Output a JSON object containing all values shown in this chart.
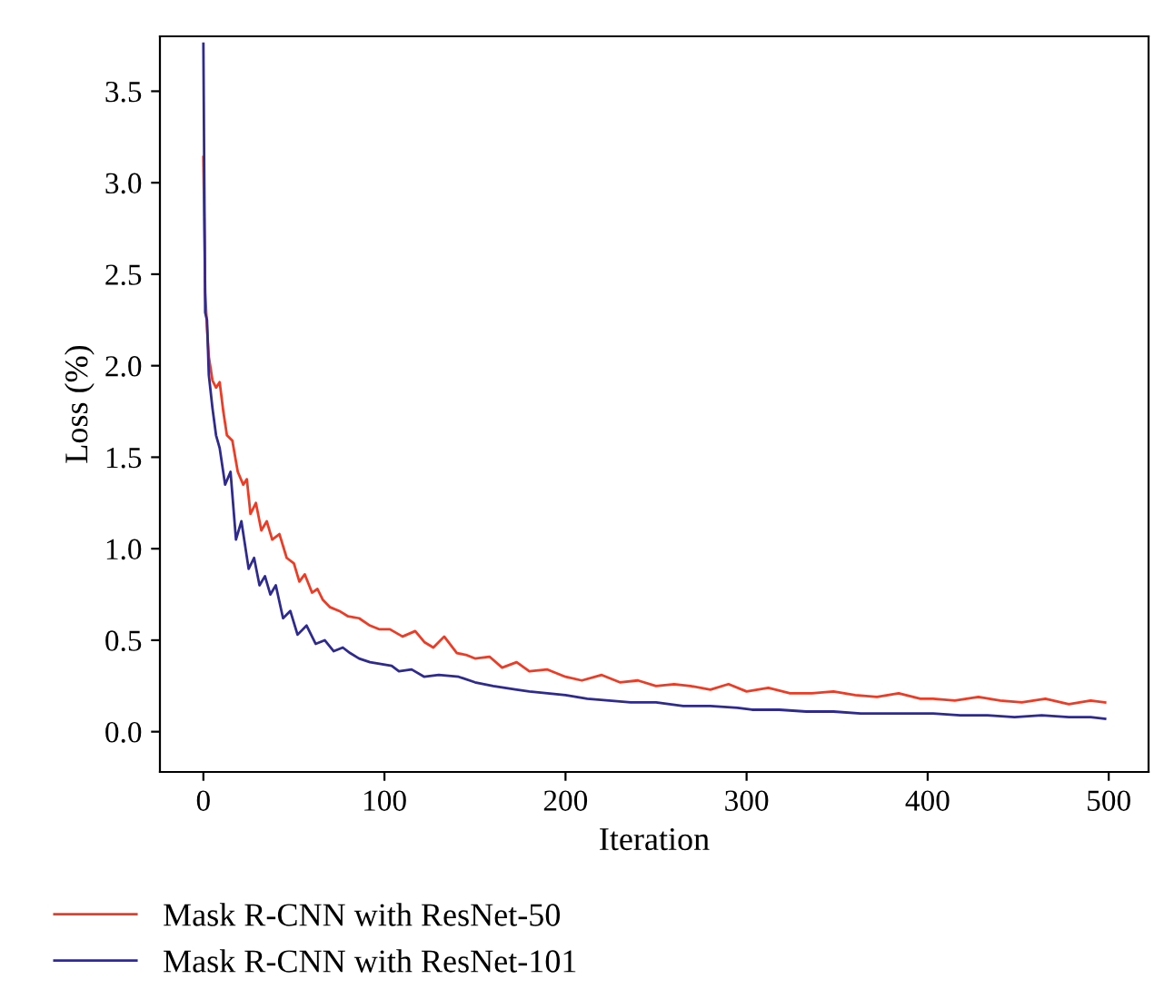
{
  "chart_data": {
    "type": "line",
    "xlabel": "Iteration",
    "ylabel": "Loss (%)",
    "xlim": [
      -24,
      522
    ],
    "ylim": [
      -0.22,
      3.8
    ],
    "xticks": [
      0,
      100,
      200,
      300,
      400,
      500
    ],
    "yticks": [
      {
        "value": 0,
        "label": "0.0"
      },
      0.5,
      {
        "value": 1,
        "label": "1.0"
      },
      1.5,
      {
        "value": 2,
        "label": "2.0"
      },
      2.5,
      {
        "value": 3,
        "label": "3.0"
      },
      3.5
    ],
    "grid": false,
    "legend": "bottom",
    "marker": "none",
    "line_style": "solid",
    "series": [
      {
        "name": "Mask R-CNN with ResNet-50",
        "color": "#ef3b24",
        "x": [
          0,
          1,
          2,
          3,
          5,
          7,
          9,
          11,
          13,
          16,
          19,
          22,
          24,
          26,
          29,
          32,
          35,
          38,
          42,
          46,
          50,
          53,
          56,
          60,
          63,
          66,
          70,
          75,
          80,
          86,
          92,
          97,
          103,
          110,
          117,
          122,
          127,
          133,
          140,
          145,
          150,
          158,
          165,
          173,
          180,
          190,
          200,
          209,
          220,
          230,
          240,
          250,
          260,
          269,
          280,
          290,
          300,
          312,
          324,
          336,
          348,
          360,
          372,
          384,
          396,
          403,
          415,
          428,
          440,
          452,
          465,
          478,
          490,
          498
        ],
        "values": [
          3.14,
          2.4,
          2.21,
          2.05,
          1.92,
          1.88,
          1.91,
          1.75,
          1.62,
          1.59,
          1.42,
          1.35,
          1.38,
          1.19,
          1.25,
          1.1,
          1.15,
          1.05,
          1.08,
          0.95,
          0.92,
          0.82,
          0.86,
          0.76,
          0.78,
          0.72,
          0.68,
          0.66,
          0.63,
          0.62,
          0.58,
          0.56,
          0.56,
          0.52,
          0.55,
          0.49,
          0.46,
          0.52,
          0.43,
          0.42,
          0.4,
          0.41,
          0.35,
          0.38,
          0.33,
          0.34,
          0.3,
          0.28,
          0.31,
          0.27,
          0.28,
          0.25,
          0.26,
          0.25,
          0.23,
          0.26,
          0.22,
          0.24,
          0.21,
          0.21,
          0.22,
          0.2,
          0.19,
          0.21,
          0.18,
          0.18,
          0.17,
          0.19,
          0.17,
          0.16,
          0.18,
          0.15,
          0.17,
          0.16
        ]
      },
      {
        "name": "Mask R-CNN with ResNet-101",
        "color": "#2e2a8f",
        "x": [
          0,
          1,
          2,
          3,
          5,
          7,
          9,
          12,
          15,
          18,
          21,
          25,
          28,
          31,
          34,
          37,
          40,
          44,
          48,
          52,
          57,
          62,
          67,
          72,
          77,
          81,
          86,
          92,
          98,
          104,
          108,
          115,
          122,
          130,
          141,
          150,
          160,
          173,
          180,
          190,
          200,
          212,
          224,
          236,
          250,
          265,
          280,
          295,
          303,
          318,
          333,
          348,
          363,
          378,
          390,
          403,
          418,
          433,
          448,
          463,
          478,
          490,
          498
        ],
        "values": [
          3.76,
          2.29,
          2.25,
          1.95,
          1.77,
          1.62,
          1.55,
          1.35,
          1.42,
          1.05,
          1.15,
          0.89,
          0.95,
          0.8,
          0.85,
          0.75,
          0.8,
          0.62,
          0.66,
          0.53,
          0.58,
          0.48,
          0.5,
          0.44,
          0.46,
          0.43,
          0.4,
          0.38,
          0.37,
          0.36,
          0.33,
          0.34,
          0.3,
          0.31,
          0.3,
          0.27,
          0.25,
          0.23,
          0.22,
          0.21,
          0.2,
          0.18,
          0.17,
          0.16,
          0.16,
          0.14,
          0.14,
          0.13,
          0.12,
          0.12,
          0.11,
          0.11,
          0.1,
          0.1,
          0.1,
          0.1,
          0.09,
          0.09,
          0.08,
          0.09,
          0.08,
          0.08,
          0.07
        ]
      }
    ]
  }
}
